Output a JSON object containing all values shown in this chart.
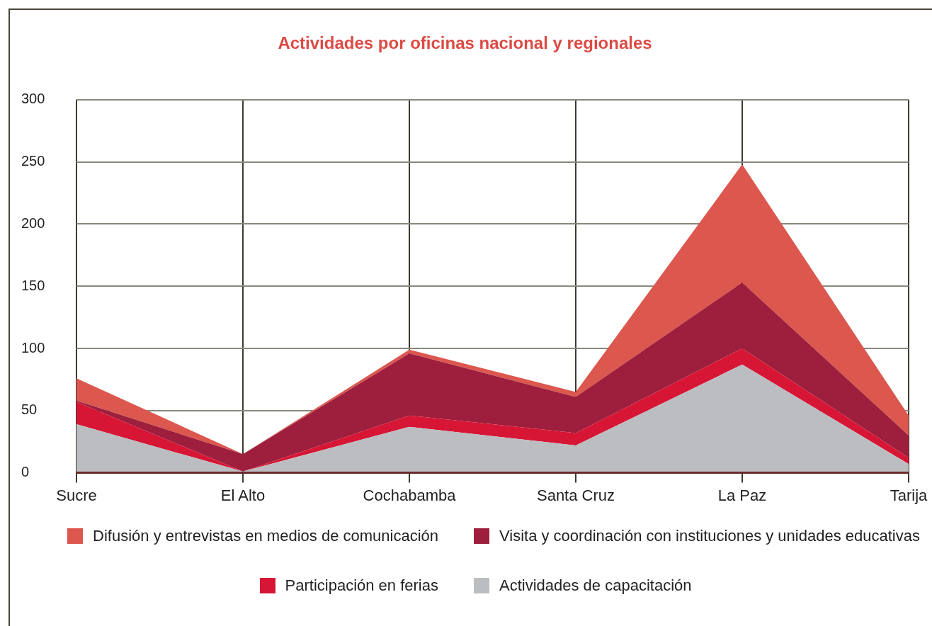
{
  "chart_data": {
    "type": "area",
    "title": "Actividades por oficinas nacional y regionales",
    "stacked": true,
    "categories": [
      "Sucre",
      "El Alto",
      "Cochabamba",
      "Santa Cruz",
      "La Paz",
      "Tarija"
    ],
    "series": [
      {
        "name": "Actividades de capacitación",
        "color": "#bcbdc0",
        "values": [
          39,
          1,
          37,
          22,
          87,
          7
        ]
      },
      {
        "name": "Participación en ferias",
        "color": "#d71635",
        "values": [
          18,
          0,
          9,
          10,
          13,
          5
        ]
      },
      {
        "name": "Visita y coordinación con instituciones y unidades educativas",
        "color": "#9e1f3d",
        "values": [
          1,
          14,
          50,
          29,
          53,
          18
        ]
      },
      {
        "name": "Difusión y entrevistas en medios de comunicación",
        "color": "#dc574e",
        "values": [
          18,
          0,
          3,
          4,
          95,
          16
        ]
      }
    ],
    "ylim": [
      0,
      300
    ],
    "yticks": [
      0,
      50,
      100,
      150,
      200,
      250,
      300
    ],
    "grid": true,
    "legend": "bottom"
  }
}
